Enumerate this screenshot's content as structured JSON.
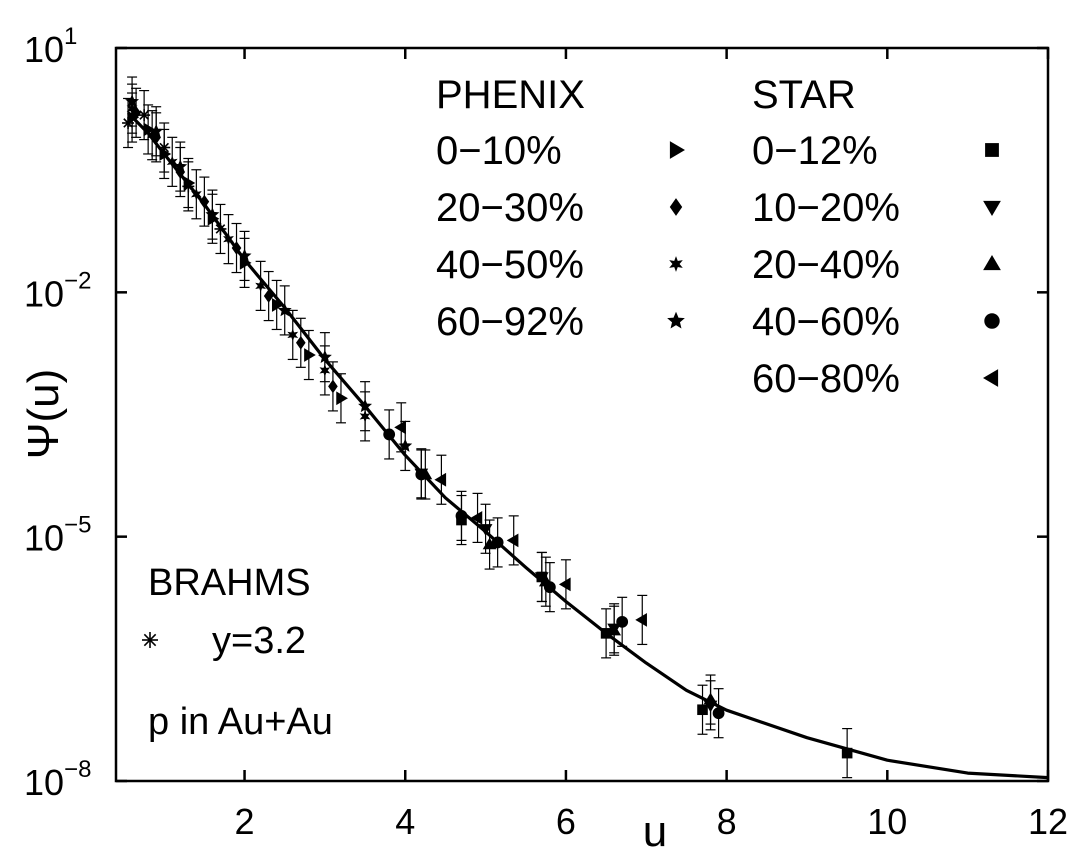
{
  "chart_data": {
    "type": "scatter",
    "title": "",
    "xlabel": "u",
    "ylabel": "Ψ(u)",
    "xlim": [
      0.4,
      12
    ],
    "ylim": [
      1e-08,
      10
    ],
    "yscale": "log",
    "grid": false,
    "x_ticks": [
      {
        "value": 2,
        "label": "2"
      },
      {
        "value": 4,
        "label": "4"
      },
      {
        "value": 6,
        "label": "6"
      },
      {
        "value": 8,
        "label": "8"
      },
      {
        "value": 10,
        "label": "10"
      },
      {
        "value": 12,
        "label": "12"
      }
    ],
    "y_ticks": [
      {
        "value": 10,
        "base": "10",
        "exp": "1"
      },
      {
        "value": 0.01,
        "base": "10",
        "exp": "−2"
      },
      {
        "value": 1e-05,
        "base": "10",
        "exp": "−5"
      },
      {
        "value": 1e-08,
        "base": "10",
        "exp": "−8"
      }
    ],
    "legend_placement": "top-right",
    "legend": {
      "groups": [
        {
          "heading": "PHENIX",
          "entries": [
            {
              "label": "0−10%",
              "marker": "triangle-right"
            },
            {
              "label": "20−30%",
              "marker": "diamond"
            },
            {
              "label": "40−50%",
              "marker": "hexagram"
            },
            {
              "label": "60−92%",
              "marker": "star"
            }
          ]
        },
        {
          "heading": "STAR",
          "entries": [
            {
              "label": "0−12%",
              "marker": "square"
            },
            {
              "label": "10−20%",
              "marker": "triangle-down"
            },
            {
              "label": "20−40%",
              "marker": "triangle-up"
            },
            {
              "label": "40−60%",
              "marker": "circle"
            },
            {
              "label": "60−80%",
              "marker": "triangle-left"
            }
          ]
        }
      ]
    },
    "annotations": {
      "brahms_heading": "BRAHMS",
      "brahms_entry": "y=3.2",
      "brahms_marker": "asterisk",
      "system": "p in Au+Au"
    },
    "fit_curve": {
      "x": [
        0.55,
        0.8,
        1.0,
        1.5,
        2.0,
        2.5,
        3.0,
        3.5,
        4.0,
        4.5,
        5.0,
        5.5,
        6.0,
        6.5,
        7.0,
        7.5,
        8.0,
        9.0,
        10.0,
        11.0,
        12.0
      ],
      "y": [
        1.6,
        0.9,
        0.5,
        0.12,
        0.025,
        0.0065,
        0.0015,
        0.0004,
        0.0001,
        3e-05,
        1.15e-05,
        4.2e-06,
        1.6e-06,
        6.5e-07,
        2.8e-07,
        1.3e-07,
        7.4e-08,
        3.4e-08,
        1.8e-08,
        1.25e-08,
        1.1e-08
      ]
    },
    "series": [
      {
        "name": "0−10%",
        "marker": "triangle-right",
        "x": [
          0.6,
          0.8,
          1.0,
          1.3,
          1.6,
          2.0,
          2.4,
          2.8,
          3.2
        ],
        "y": [
          1.4,
          1.0,
          0.5,
          0.22,
          0.08,
          0.023,
          0.007,
          0.0017,
          0.0005
        ]
      },
      {
        "name": "20−30%",
        "marker": "diamond",
        "x": [
          0.65,
          0.9,
          1.2,
          1.5,
          1.9,
          2.3,
          2.7,
          3.1
        ],
        "y": [
          1.6,
          0.8,
          0.3,
          0.13,
          0.035,
          0.009,
          0.0024,
          0.0007
        ]
      },
      {
        "name": "40−50%",
        "marker": "hexagram",
        "x": [
          0.6,
          0.85,
          1.1,
          1.4,
          1.8,
          2.2,
          2.6,
          3.0,
          3.5
        ],
        "y": [
          1.8,
          0.85,
          0.4,
          0.16,
          0.045,
          0.012,
          0.003,
          0.0011,
          0.0003
        ]
      },
      {
        "name": "60−92%",
        "marker": "star",
        "x": [
          0.6,
          0.9,
          1.2,
          1.6,
          2.0,
          2.5,
          3.0,
          3.5,
          4.0
        ],
        "y": [
          2.2,
          0.95,
          0.35,
          0.09,
          0.028,
          0.006,
          0.0016,
          0.0004,
          0.00013
        ]
      },
      {
        "name": "0−12%",
        "marker": "square",
        "x": [
          4.7,
          5.7,
          6.5,
          7.7,
          9.5
        ],
        "y": [
          1.6e-05,
          3.2e-06,
          6.5e-07,
          7.5e-08,
          2.2e-08
        ]
      },
      {
        "name": "10−20%",
        "marker": "triangle-down",
        "x": [
          4.2,
          5.0,
          5.7,
          6.6,
          7.8
        ],
        "y": [
          6e-05,
          1.25e-05,
          3.2e-06,
          7.5e-07,
          8.5e-08
        ]
      },
      {
        "name": "20−40%",
        "marker": "triangle-up",
        "x": [
          4.25,
          5.05,
          5.75,
          6.6,
          7.8
        ],
        "y": [
          5.8e-05,
          8e-06,
          2.8e-06,
          7e-07,
          1e-07
        ]
      },
      {
        "name": "40−60%",
        "marker": "circle",
        "x": [
          3.8,
          4.2,
          4.7,
          5.15,
          5.8,
          6.7,
          7.9
        ],
        "y": [
          0.00018,
          5.8e-05,
          1.8e-05,
          8.5e-06,
          2.4e-06,
          9e-07,
          6.8e-08
        ]
      },
      {
        "name": "60−80%",
        "marker": "triangle-left",
        "x": [
          3.95,
          4.45,
          4.9,
          5.35,
          6.0,
          6.95
        ],
        "y": [
          0.00022,
          5e-05,
          1.7e-05,
          9e-06,
          2.6e-06,
          9.5e-07
        ]
      },
      {
        "name": "y=3.2",
        "marker": "asterisk",
        "x": [
          0.55,
          0.75,
          1.0,
          1.3,
          1.7
        ],
        "y": [
          1.2,
          1.5,
          0.6,
          0.2,
          0.06
        ]
      }
    ]
  }
}
